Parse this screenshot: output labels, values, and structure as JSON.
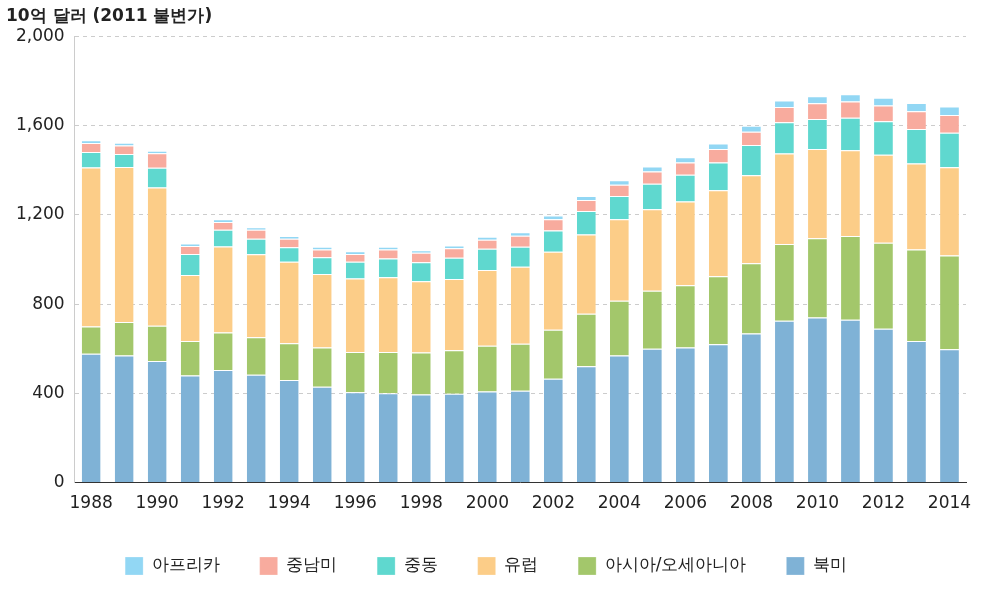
{
  "chart_data": {
    "type": "bar",
    "stacked": true,
    "title": "10억 달러 (2011 불변가)",
    "categories": [
      "1988",
      null,
      "1990",
      null,
      "1992",
      null,
      "1994",
      null,
      "1996",
      null,
      "1998",
      null,
      "2000",
      null,
      "2002",
      null,
      "2004",
      null,
      "2006",
      null,
      "2008",
      null,
      "2010",
      null,
      "2012",
      null,
      "2014"
    ],
    "series": [
      {
        "name": "북미",
        "color": "#7fb2d6",
        "values": [
          578,
          570,
          545,
          480,
          505,
          483,
          460,
          430,
          405,
          400,
          395,
          398,
          408,
          412,
          465,
          522,
          570,
          600,
          605,
          620,
          668,
          725,
          740,
          730,
          690,
          635,
          598
        ]
      },
      {
        "name": "아시아/오세아니아",
        "color": "#a3c76b",
        "values": [
          122,
          150,
          158,
          155,
          168,
          168,
          165,
          175,
          180,
          185,
          188,
          195,
          205,
          210,
          220,
          235,
          245,
          260,
          280,
          305,
          315,
          345,
          355,
          375,
          385,
          410,
          420
        ]
      },
      {
        "name": "유럽",
        "color": "#fccd88",
        "values": [
          712,
          695,
          620,
          295,
          385,
          372,
          365,
          330,
          330,
          335,
          320,
          320,
          340,
          345,
          350,
          355,
          365,
          365,
          375,
          385,
          395,
          405,
          400,
          385,
          395,
          385,
          395
        ]
      },
      {
        "name": "중동",
        "color": "#5fd8cf",
        "values": [
          70,
          58,
          88,
          95,
          75,
          70,
          65,
          75,
          75,
          85,
          85,
          95,
          95,
          90,
          95,
          105,
          105,
          115,
          120,
          125,
          135,
          140,
          135,
          145,
          150,
          155,
          155
        ]
      },
      {
        "name": "중남미",
        "color": "#f8ab9e",
        "values": [
          40,
          38,
          65,
          35,
          35,
          40,
          38,
          35,
          35,
          40,
          42,
          42,
          40,
          50,
          50,
          50,
          50,
          55,
          55,
          60,
          60,
          68,
          70,
          73,
          70,
          80,
          80
        ]
      },
      {
        "name": "아프리카",
        "color": "#92d7f4",
        "values": [
          12,
          12,
          12,
          12,
          12,
          12,
          12,
          12,
          12,
          12,
          12,
          13,
          14,
          15,
          17,
          18,
          20,
          22,
          23,
          25,
          27,
          30,
          32,
          33,
          35,
          37,
          38
        ]
      }
    ],
    "ylim": [
      0,
      2000
    ],
    "yticks": [
      0,
      400,
      800,
      {
        "value": 1200,
        "label": "1,200"
      },
      {
        "value": 1600,
        "label": "1,600"
      },
      {
        "value": 2000,
        "label": "2,000"
      }
    ],
    "grid": true,
    "legend": "bottom"
  }
}
